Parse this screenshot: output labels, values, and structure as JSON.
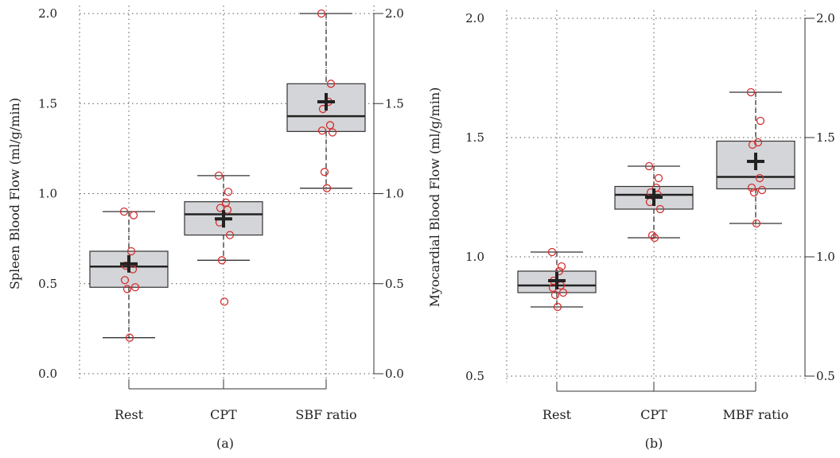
{
  "chart_data": [
    {
      "type": "box",
      "panel_label": "(a)",
      "ylabel": "Spleen Blood Flow (ml/g/min)",
      "ylim": [
        0.0,
        2.0
      ],
      "yticks": [
        "0.0",
        "0.5",
        "1.0",
        "1.5",
        "2.0"
      ],
      "yticks_right": [
        "0.0",
        "0.5",
        "1.0",
        "1.5",
        "2.0"
      ],
      "grid": "dotted",
      "categories": [
        "Rest",
        "CPT",
        "SBF ratio"
      ],
      "boxes": [
        {
          "category": "Rest",
          "whisker_low": 0.2,
          "q1": 0.48,
          "median": 0.595,
          "q3": 0.68,
          "whisker_high": 0.9,
          "mean": 0.61,
          "points": [
            0.9,
            0.88,
            0.68,
            0.6,
            0.58,
            0.52,
            0.48,
            0.47,
            0.2
          ]
        },
        {
          "category": "CPT",
          "whisker_low": 0.63,
          "q1": 0.77,
          "median": 0.885,
          "q3": 0.955,
          "whisker_high": 1.1,
          "mean": 0.86,
          "points": [
            1.1,
            1.01,
            0.95,
            0.92,
            0.91,
            0.84,
            0.77,
            0.63,
            0.4
          ]
        },
        {
          "category": "SBF ratio",
          "whisker_low": 1.03,
          "q1": 1.345,
          "median": 1.43,
          "q3": 1.61,
          "whisker_high": 2.0,
          "mean": 1.51,
          "points": [
            2.0,
            1.61,
            1.51,
            1.47,
            1.38,
            1.35,
            1.34,
            1.12,
            1.03
          ]
        }
      ]
    },
    {
      "type": "box",
      "panel_label": "(b)",
      "ylabel": "Myocardial Blood Flow (ml/g/min)",
      "ylim": [
        0.5,
        2.0
      ],
      "yticks": [
        "0.5",
        "1.0",
        "1.5",
        "2.0"
      ],
      "yticks_right": [
        "0.5",
        "1.0",
        "1.5",
        "2.0"
      ],
      "grid": "dotted",
      "categories": [
        "Rest",
        "CPT",
        "MBF ratio"
      ],
      "boxes": [
        {
          "category": "Rest",
          "whisker_low": 0.79,
          "q1": 0.85,
          "median": 0.88,
          "q3": 0.94,
          "whisker_high": 1.02,
          "mean": 0.9,
          "points": [
            1.02,
            0.96,
            0.94,
            0.9,
            0.88,
            0.87,
            0.85,
            0.84,
            0.79
          ]
        },
        {
          "category": "CPT",
          "whisker_low": 1.08,
          "q1": 1.2,
          "median": 1.26,
          "q3": 1.295,
          "whisker_high": 1.38,
          "mean": 1.25,
          "points": [
            1.38,
            1.33,
            1.29,
            1.27,
            1.26,
            1.23,
            1.2,
            1.09,
            1.08
          ]
        },
        {
          "category": "MBF ratio",
          "whisker_low": 1.14,
          "q1": 1.285,
          "median": 1.335,
          "q3": 1.485,
          "whisker_high": 1.69,
          "mean": 1.4,
          "points": [
            1.69,
            1.57,
            1.48,
            1.47,
            1.33,
            1.29,
            1.28,
            1.27,
            1.14
          ]
        }
      ]
    }
  ],
  "colors": {
    "box_fill": "#d4d5d8",
    "box_stroke": "#333333",
    "point": "#d32f2f",
    "mean_marker": "#222222",
    "grid": "#555555"
  }
}
